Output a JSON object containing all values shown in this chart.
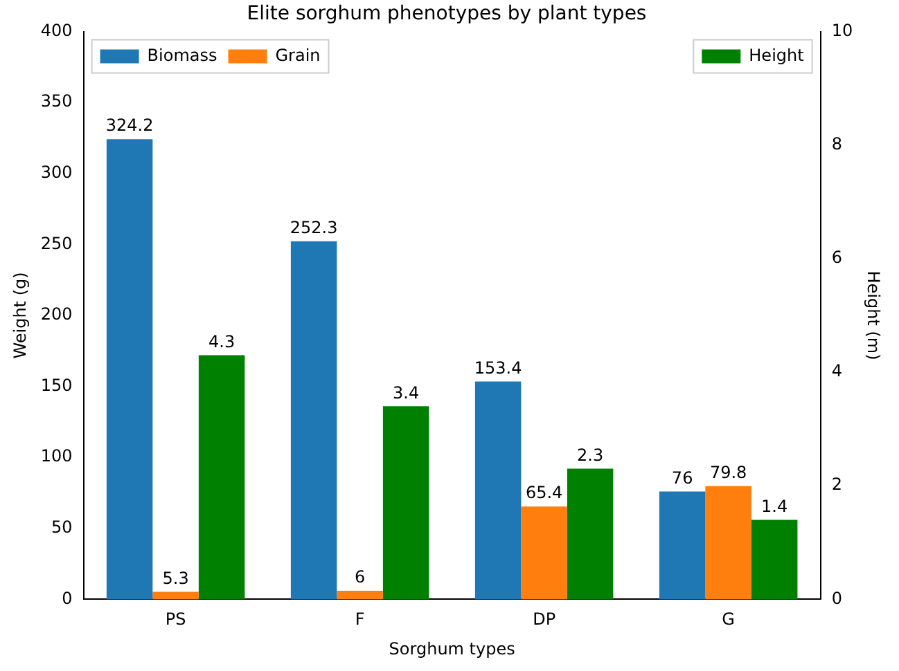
{
  "chart_data": {
    "type": "bar",
    "title": "Elite sorghum phenotypes by plant types",
    "xlabel": "Sorghum types",
    "ylabel": "Weight (g)",
    "y2label": "Height (m)",
    "categories": [
      "PS",
      "F",
      "DP",
      "G"
    ],
    "series": [
      {
        "name": "Biomass",
        "color": "#1f77b4",
        "values": [
          324.2,
          252.3,
          153.4,
          76
        ]
      },
      {
        "name": "Grain",
        "color": "#ff7f0e",
        "values": [
          5.3,
          6,
          65.4,
          79.8
        ]
      },
      {
        "name": "Height",
        "color": "#008000",
        "values": [
          4.3,
          3.4,
          2.3,
          1.4
        ],
        "axis": "y2"
      }
    ],
    "ylim": [
      0,
      400
    ],
    "yticks": [
      0,
      50,
      100,
      150,
      200,
      250,
      300,
      350,
      400
    ],
    "y2lim": [
      0,
      10
    ],
    "y2ticks": [
      0,
      2,
      4,
      6,
      8,
      10
    ],
    "data_labels": true,
    "grid": false,
    "legend": "top left"
  }
}
